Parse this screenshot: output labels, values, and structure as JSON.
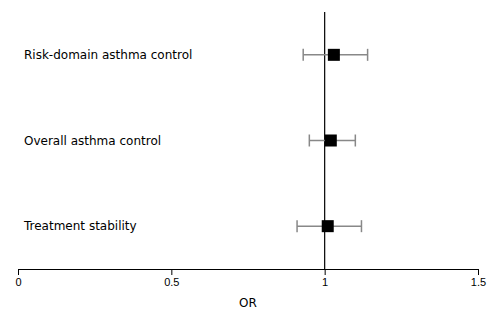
{
  "chart_data": {
    "type": "forest",
    "categories": [
      "Risk-domain asthma control",
      "Overall asthma control",
      "Treatment stability"
    ],
    "values": [
      1.03,
      1.02,
      1.01
    ],
    "ci_lower": [
      0.93,
      0.95,
      0.91
    ],
    "ci_upper": [
      1.14,
      1.1,
      1.12
    ],
    "xlim": [
      0,
      1.5
    ],
    "xticks": [
      0,
      0.5,
      1,
      1.5
    ],
    "xlabel": "OR",
    "reference_line": 1.0,
    "color": "#000000",
    "error_color": "#888888"
  }
}
